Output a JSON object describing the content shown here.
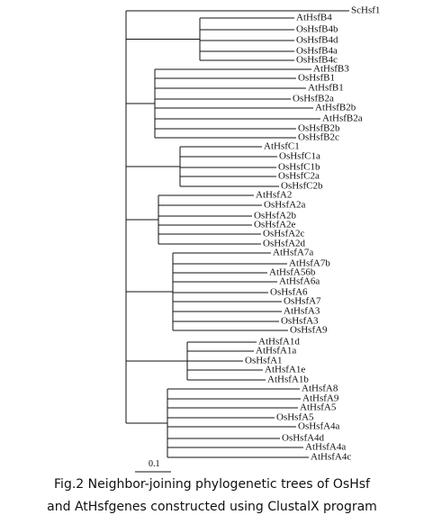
{
  "tree": {
    "leaves": [
      "ScHsf1",
      "AtHsfB4",
      "OsHsfB4b",
      "OsHsfB4d",
      "OsHsfB4a",
      "OsHsfB4c",
      "AtHsfB3",
      "OsHsfB1",
      "AtHsfB1",
      "OsHsfB2a",
      "AtHsfB2b",
      "AtHsfB2a",
      "OsHsfB2b",
      "OsHsfB2c",
      "AtHsfC1",
      "OsHsfC1a",
      "OsHsfC1b",
      "OsHsfC2a",
      "OsHsfC2b",
      "AtHsfA2",
      "OsHsfA2a",
      "OsHsfA2b",
      "OsHsfA2e",
      "OsHsfA2c",
      "OsHsfA2d",
      "AtHsfA7a",
      "AtHsfA7b",
      "AtHsfA56b",
      "AtHsfA6a",
      "OsHsfA6",
      "OsHsfA7",
      "AtHsfA3",
      "OsHsfA3",
      "OsHsfA9",
      "AtHsfA1d",
      "AtHsfA1a",
      "OsHsfA1",
      "AtHsfA1e",
      "AtHsfA1b",
      "AtHsfA8",
      "AtHsfA9",
      "AtHsfA5",
      "OsHsfA5",
      "OsHsfA4a",
      "OsHsfA4d",
      "AtHsfA4a",
      "AtHsfA4c"
    ],
    "scale_label": "0.1"
  },
  "caption": [
    "Fig.2 Neighbor-joining phylogenetic trees of OsHsf",
    "and AtHsfgenes constructed using ClustalX program"
  ]
}
